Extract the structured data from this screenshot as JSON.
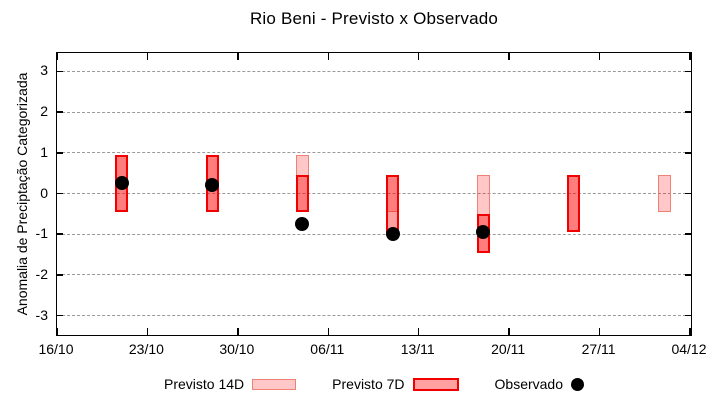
{
  "title": "Rio Beni - Previsto x Observado",
  "chart_data": {
    "type": "candlestick+scatter",
    "title": "Rio Beni - Previsto x Observado",
    "ylabel": "Anomalia de Preciptação Categorizada",
    "xlabel": "",
    "ylim": [
      -3.45,
      3.45
    ],
    "yticks": [
      3,
      2,
      1,
      0,
      -1,
      -2,
      -3
    ],
    "x_axis": {
      "span_days": 49,
      "tick_interval_days": 7
    },
    "xtick_labels": [
      "16/10",
      "23/10",
      "30/10",
      "06/11",
      "13/11",
      "20/11",
      "27/11",
      "04/12"
    ],
    "grid": "horizontal dashed",
    "legend_position": "bottom",
    "legend": [
      {
        "label": "Previsto 14D",
        "swatch": "forecast-14d"
      },
      {
        "label": "Previsto 7D",
        "swatch": "forecast-7d"
      },
      {
        "label": "Observado",
        "swatch": "observed-dot"
      }
    ],
    "bars": [
      {
        "date": "21/10",
        "day": 5,
        "previsto_14d": [
          -0.45,
          0.95
        ],
        "previsto_7d": [
          -0.45,
          0.95
        ],
        "observado": 0.25
      },
      {
        "date": "28/10",
        "day": 12,
        "previsto_14d": [
          -0.45,
          0.95
        ],
        "previsto_7d": [
          -0.45,
          0.95
        ],
        "observado": 0.2
      },
      {
        "date": "04/11",
        "day": 19,
        "previsto_14d": [
          -0.45,
          0.95
        ],
        "previsto_7d": [
          -0.45,
          0.45
        ],
        "observado": -0.75
      },
      {
        "date": "11/11",
        "day": 26,
        "previsto_14d": [
          -0.45,
          0.45
        ],
        "previsto_7d": [
          -1.0,
          0.45
        ],
        "observado": -1.0
      },
      {
        "date": "18/11",
        "day": 33,
        "previsto_14d": [
          -1.45,
          0.45
        ],
        "previsto_7d": [
          -1.45,
          -0.5
        ],
        "observado": -0.95
      },
      {
        "date": "25/11",
        "day": 40,
        "previsto_14d": [
          -0.95,
          0.45
        ],
        "previsto_7d": [
          -0.95,
          0.45
        ],
        "observado": null
      },
      {
        "date": "02/12",
        "day": 47,
        "previsto_14d": [
          -0.45,
          0.45
        ],
        "previsto_7d": null,
        "observado": null
      }
    ],
    "colors": {
      "forecast14_fill": "rgba(255,0,0,0.22)",
      "forecast14_border": "#ef8276",
      "forecast7_fill": "rgba(255,0,0,0.37)",
      "forecast7_border": "#f20000",
      "observed": "#000000",
      "grid": "#9a9a9a",
      "axis": "#000000"
    }
  }
}
